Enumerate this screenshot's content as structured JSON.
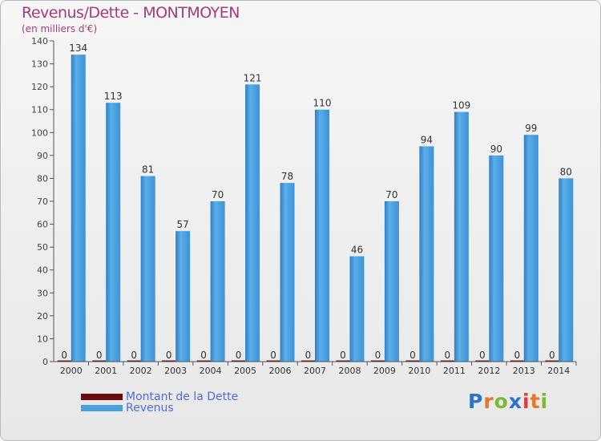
{
  "header": {
    "title": "Revenus/Dette - MONTMOYEN",
    "subtitle": "(en milliers d'€)"
  },
  "chart_data": {
    "type": "bar",
    "title": "Revenus/Dette - MONTMOYEN",
    "ylabel": "(en milliers d'€)",
    "categories": [
      "2000",
      "2001",
      "2002",
      "2003",
      "2004",
      "2005",
      "2006",
      "2007",
      "2008",
      "2009",
      "2010",
      "2011",
      "2012",
      "2013",
      "2014"
    ],
    "series": [
      {
        "name": "Montant de la Dette",
        "color": "#6b0b0b",
        "values": [
          0,
          0,
          0,
          0,
          0,
          0,
          0,
          0,
          0,
          0,
          0,
          0,
          0,
          0,
          0
        ]
      },
      {
        "name": "Revenus",
        "color": "#4ba0e0",
        "values": [
          134,
          113,
          81,
          57,
          70,
          121,
          78,
          110,
          46,
          70,
          94,
          109,
          90,
          99,
          80
        ]
      }
    ],
    "yticks": [
      0,
      10,
      20,
      30,
      40,
      50,
      60,
      70,
      80,
      90,
      100,
      110,
      120,
      130,
      140
    ],
    "ylim": [
      0,
      140
    ],
    "grid": false,
    "legend": "bottom-left"
  },
  "legend": {
    "items": [
      {
        "label": "Montant de la Dette",
        "color": "#6b0b0b"
      },
      {
        "label": "Revenus",
        "color": "#4ba0e0"
      }
    ]
  },
  "logo": {
    "letters": [
      "P",
      "r",
      "o",
      "x",
      "i",
      "t",
      "i"
    ],
    "colors": [
      "#2c73c9",
      "#e1762c",
      "#7cb83a",
      "#2c73c9",
      "#d63f3f",
      "#e1762c",
      "#7cb83a"
    ]
  }
}
